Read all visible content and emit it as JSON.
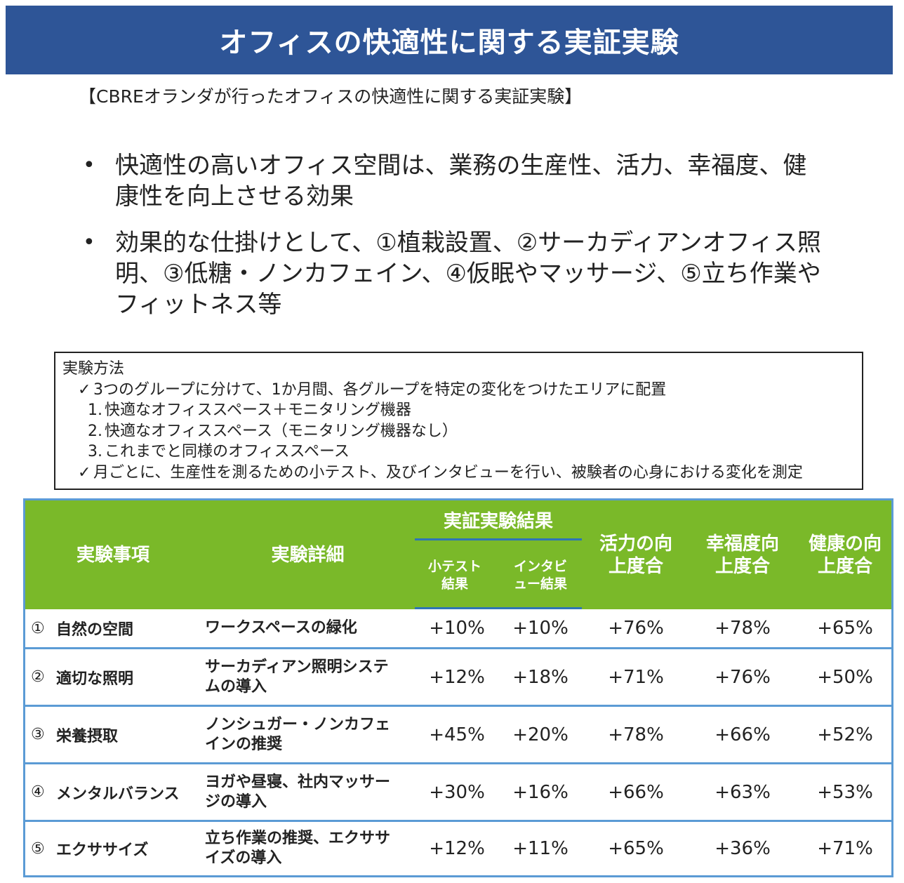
{
  "title": "オフィスの快適性に関する実証実験",
  "subtitle": "【CBREオランダが行ったオフィスの快適性に関する実証実験】",
  "bullets": [
    {
      "marker": "•",
      "text": "快適性の高いオフィス空間は、業務の生産性、活力、幸福度、健康性を向上させる効果"
    },
    {
      "marker": "•",
      "text": "効果的な仕掛けとして、①植栽設置、②サーカディアンオフィス照明、③低糖・ノンカフェイン、④仮眠やマッサージ、⑤立ち作業やフィットネス等"
    }
  ],
  "method": {
    "heading": "実験方法",
    "check_mark": "✓",
    "line1": "3つのグループに分けて、1か月間、各グループを特定の変化をつけたエリアに配置",
    "items": [
      {
        "num": "1.",
        "text": "快適なオフィススペース＋モニタリング機器"
      },
      {
        "num": "2.",
        "text": "快適なオフィススペース（モニタリング機器なし）"
      },
      {
        "num": "3.",
        "text": "これまでと同様のオフィススペース"
      }
    ],
    "line2": "月ごとに、生産性を測るための小テスト、及びインタビューを行い、被験者の心身における変化を測定"
  },
  "table": {
    "headers": {
      "item": "実験事項",
      "detail": "実験詳細",
      "result_group": "実証実験結果",
      "test": "小テスト結果",
      "interview": "インタビュー結果",
      "vitality": "活力の向上度合",
      "happiness": "幸福度向上度合",
      "health": "健康の向上度合"
    },
    "rows": [
      {
        "no": "①",
        "item": "自然の空間",
        "detail": "ワークスペースの緑化",
        "test": "+10%",
        "interview": "+10%",
        "vitality": "+76%",
        "happiness": "+78%",
        "health": "+65%"
      },
      {
        "no": "②",
        "item": "適切な照明",
        "detail": "サーカディアン照明システムの導入",
        "test": "+12%",
        "interview": "+18%",
        "vitality": "+71%",
        "happiness": "+76%",
        "health": "+50%"
      },
      {
        "no": "③",
        "item": "栄養摂取",
        "detail": "ノンシュガー・ノンカフェインの推奨",
        "test": "+45%",
        "interview": "+20%",
        "vitality": "+78%",
        "happiness": "+66%",
        "health": "+52%"
      },
      {
        "no": "④",
        "item": "メンタルバランス",
        "detail": "ヨガや昼寝、社内マッサージの導入",
        "test": "+30%",
        "interview": "+16%",
        "vitality": "+66%",
        "happiness": "+63%",
        "health": "+53%"
      },
      {
        "no": "⑤",
        "item": "エクササイズ",
        "detail": "立ち作業の推奨、エクササイズの導入",
        "test": "+12%",
        "interview": "+11%",
        "vitality": "+65%",
        "happiness": "+36%",
        "health": "+71%"
      }
    ]
  },
  "colors": {
    "title_bg": "#2e5597",
    "header_bg": "#7ab929",
    "table_border": "#5b9bd5"
  }
}
